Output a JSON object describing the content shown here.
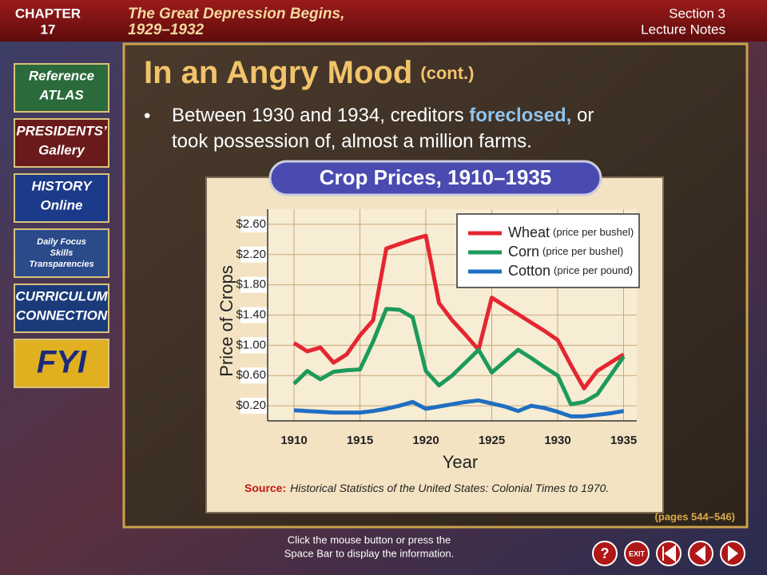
{
  "header": {
    "chapter": "CHAPTER",
    "chapter_number": "17",
    "title": "The Great Depression Begins,",
    "dates": "1929–1932",
    "section": "Section 3",
    "subtitle": "Lecture Notes"
  },
  "sidebar": [
    {
      "top": "Reference",
      "bottom": "ATLAS"
    },
    {
      "top": "PRESIDENTS’",
      "bottom": "Gallery"
    },
    {
      "top": "HISTORY",
      "bottom": "Online"
    },
    {
      "top": "Daily Focus",
      "middle": "Skills",
      "bottom": "Transparencies"
    },
    {
      "top": "CURRICULUM",
      "bottom": "CONNECTION"
    },
    {
      "top": "FYI"
    }
  ],
  "slide": {
    "title": "In an Angry Mood",
    "title_suffix": "(cont.)",
    "bullet": {
      "pre": "Between 1930 and 1934, creditors ",
      "term": "foreclosed,",
      "post": " or",
      "line2": "took possession of, almost a million farms."
    },
    "pages": "(pages 544–546)"
  },
  "chart_data": {
    "type": "line",
    "title": "Crop Prices, 1910–1935",
    "xlabel": "Year",
    "ylabel": "Price of Crops",
    "x": [
      1910,
      1911,
      1912,
      1913,
      1914,
      1915,
      1916,
      1917,
      1918,
      1919,
      1920,
      1921,
      1922,
      1923,
      1924,
      1925,
      1926,
      1927,
      1928,
      1929,
      1930,
      1931,
      1932,
      1933,
      1934,
      1935
    ],
    "series": [
      {
        "name": "Wheat",
        "unit": "(price per bushel)",
        "color": "#e42631",
        "values": [
          1.03,
          0.92,
          0.97,
          0.77,
          0.88,
          1.13,
          1.33,
          2.28,
          2.34,
          2.4,
          2.45,
          1.56,
          1.33,
          1.14,
          0.94,
          1.63,
          1.52,
          1.41,
          1.3,
          1.19,
          1.07,
          0.74,
          0.43,
          0.66,
          0.77,
          0.88
        ]
      },
      {
        "name": "Corn",
        "unit": "(price per bushel)",
        "color": "#1c9a5c",
        "values": [
          0.49,
          0.66,
          0.55,
          0.65,
          0.67,
          0.68,
          1.05,
          1.48,
          1.47,
          1.37,
          0.66,
          0.47,
          0.6,
          0.77,
          0.94,
          0.64,
          0.79,
          0.94,
          0.83,
          0.71,
          0.6,
          0.22,
          0.25,
          0.35,
          0.6,
          0.85
        ]
      },
      {
        "name": "Cotton",
        "unit": "(price per pound)",
        "color": "#1f6fc2",
        "values": [
          0.14,
          0.13,
          0.12,
          0.11,
          0.11,
          0.11,
          0.13,
          0.16,
          0.2,
          0.25,
          0.16,
          0.19,
          0.22,
          0.25,
          0.27,
          0.23,
          0.19,
          0.13,
          0.2,
          0.17,
          0.12,
          0.06,
          0.06,
          0.08,
          0.1,
          0.13
        ]
      }
    ],
    "xlim": [
      1908,
      1936
    ],
    "xticks": [
      1910,
      1915,
      1920,
      1925,
      1930,
      1935
    ],
    "ylim": [
      0,
      2.8
    ],
    "yticks": [
      {
        "value": 0.2,
        "label": "$0.20"
      },
      {
        "value": 0.6,
        "label": "$0.60"
      },
      {
        "value": 1.0,
        "label": "$1.00"
      },
      {
        "value": 1.4,
        "label": "$1.40"
      },
      {
        "value": 1.8,
        "label": "$1.80"
      },
      {
        "value": 2.2,
        "label": "$2.20"
      },
      {
        "value": 2.6,
        "label": "$2.60"
      }
    ],
    "grid": true,
    "legend": "upper right",
    "source_label": "Source:",
    "source": "Historical Statistics of the United States: Colonial Times to 1970."
  },
  "footer": {
    "instruction": [
      "Click the mouse button or press the",
      "Space Bar to display the information."
    ],
    "help": "?",
    "exit": "EXIT"
  }
}
